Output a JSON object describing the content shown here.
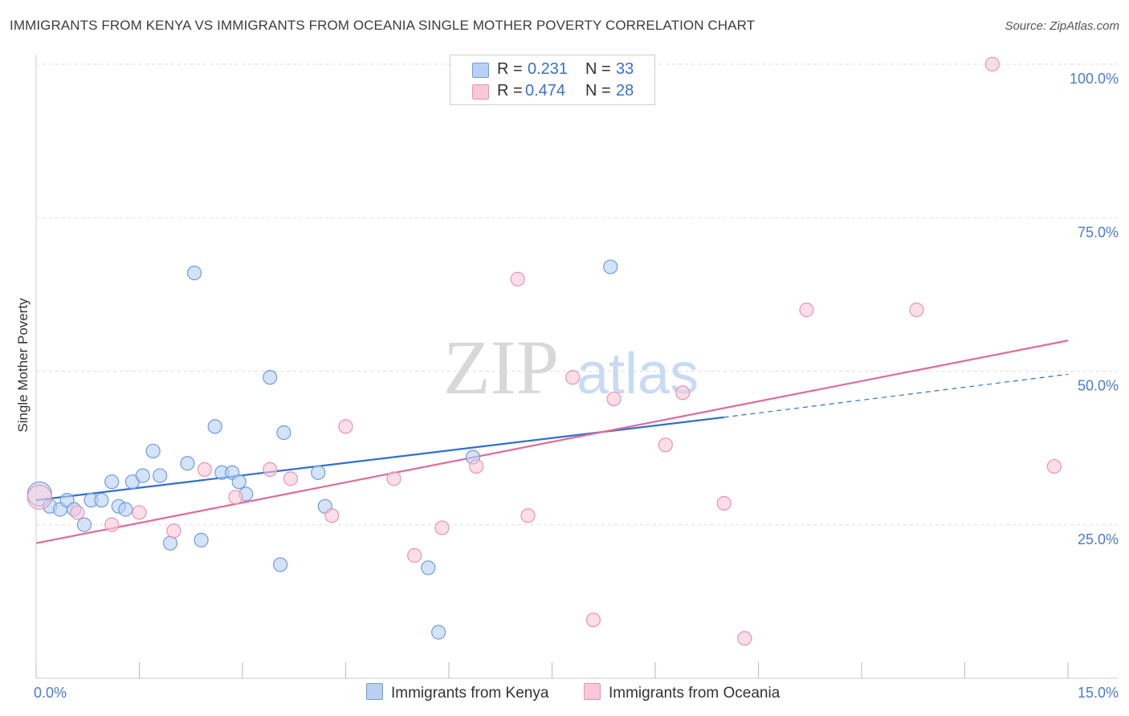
{
  "title": "IMMIGRANTS FROM KENYA VS IMMIGRANTS FROM OCEANIA SINGLE MOTHER POVERTY CORRELATION CHART",
  "source": "Source: ZipAtlas.com",
  "watermark": {
    "zip": "ZIP",
    "atlas": "atlas"
  },
  "colors": {
    "blue_fill": "#b8d0f4",
    "blue_stroke": "#6f9be0",
    "blue_line": "#2f6fd1",
    "pink_fill": "#f8c8d8",
    "pink_stroke": "#e793b2",
    "pink_line": "#e06b98",
    "grid": "#dddddd",
    "tick_text": "#4a7bd0"
  },
  "legend_top": [
    {
      "r_label": "R =",
      "r_value": "0.231",
      "n_label": "N =",
      "n_value": "33"
    },
    {
      "r_label": "R =",
      "r_value": "0.474",
      "n_label": "N =",
      "n_value": "28"
    }
  ],
  "legend_bottom": [
    "Immigrants from Kenya",
    "Immigrants from Oceania"
  ],
  "chart_data": {
    "type": "scatter",
    "xlabel": "",
    "ylabel": "Single Mother Poverty",
    "xlim": [
      0,
      15
    ],
    "ylim": [
      0,
      100
    ],
    "x_tick_labels": [
      "0.0%",
      "15.0%"
    ],
    "y_ticks": [
      25,
      50,
      75,
      100
    ],
    "y_tick_labels": [
      "25.0%",
      "50.0%",
      "75.0%",
      "100.0%"
    ],
    "grid": true,
    "series": [
      {
        "name": "Immigrants from Kenya",
        "r": 0.231,
        "n": 33,
        "points": [
          [
            0.05,
            30.0
          ],
          [
            0.2,
            28.0
          ],
          [
            0.35,
            27.5
          ],
          [
            0.45,
            29.0
          ],
          [
            0.55,
            27.5
          ],
          [
            0.7,
            25.0
          ],
          [
            0.8,
            29.0
          ],
          [
            0.95,
            29.0
          ],
          [
            1.1,
            32.0
          ],
          [
            1.2,
            28.0
          ],
          [
            1.3,
            27.5
          ],
          [
            1.4,
            32.0
          ],
          [
            1.55,
            33.0
          ],
          [
            1.7,
            37.0
          ],
          [
            1.8,
            33.0
          ],
          [
            1.95,
            22.0
          ],
          [
            2.2,
            35.0
          ],
          [
            2.3,
            66.0
          ],
          [
            2.4,
            22.5
          ],
          [
            2.6,
            41.0
          ],
          [
            2.7,
            33.5
          ],
          [
            2.85,
            33.5
          ],
          [
            2.95,
            32.0
          ],
          [
            3.05,
            30.0
          ],
          [
            3.4,
            49.0
          ],
          [
            3.55,
            18.5
          ],
          [
            3.6,
            40.0
          ],
          [
            4.1,
            33.5
          ],
          [
            4.2,
            28.0
          ],
          [
            5.7,
            18.0
          ],
          [
            5.85,
            7.5
          ],
          [
            6.35,
            36.0
          ],
          [
            8.35,
            67.0
          ]
        ],
        "trend": {
          "x0": 0.0,
          "y0": 29.0,
          "x1": 10.0,
          "y1": 42.5,
          "dashed_to_x": 15.0,
          "dashed_to_y": 49.5
        }
      },
      {
        "name": "Immigrants from Oceania",
        "r": 0.474,
        "n": 28,
        "points": [
          [
            0.05,
            29.5
          ],
          [
            0.6,
            27.0
          ],
          [
            1.1,
            25.0
          ],
          [
            1.5,
            27.0
          ],
          [
            2.0,
            24.0
          ],
          [
            2.45,
            34.0
          ],
          [
            2.9,
            29.5
          ],
          [
            3.4,
            34.0
          ],
          [
            3.7,
            32.5
          ],
          [
            4.3,
            26.5
          ],
          [
            4.5,
            41.0
          ],
          [
            5.2,
            32.5
          ],
          [
            5.5,
            20.0
          ],
          [
            5.9,
            24.5
          ],
          [
            6.4,
            34.5
          ],
          [
            7.0,
            65.0
          ],
          [
            7.15,
            26.5
          ],
          [
            7.8,
            49.0
          ],
          [
            8.1,
            9.5
          ],
          [
            8.4,
            45.5
          ],
          [
            9.15,
            38.0
          ],
          [
            9.4,
            46.5
          ],
          [
            10.0,
            28.5
          ],
          [
            10.3,
            6.5
          ],
          [
            11.2,
            60.0
          ],
          [
            12.8,
            60.0
          ],
          [
            13.9,
            100.0
          ],
          [
            14.8,
            34.5
          ]
        ],
        "trend": {
          "x0": 0.0,
          "y0": 22.0,
          "x1": 15.0,
          "y1": 55.0
        }
      }
    ]
  }
}
